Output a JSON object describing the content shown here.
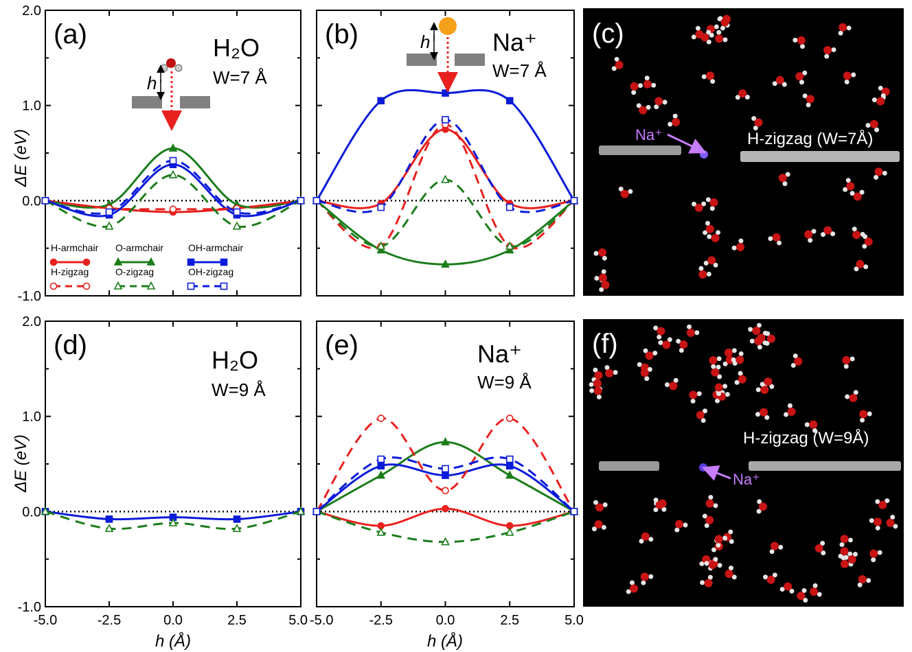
{
  "figure": {
    "y_axis_label": "ΔE (eV)",
    "x_axis_label": "h (Å)",
    "legend": [
      {
        "label": "H-armchair",
        "color": "#e8201e",
        "dash": false,
        "marker": "filled-circle"
      },
      {
        "label": "O-armchair",
        "color": "#1b7d1b",
        "dash": false,
        "marker": "filled-triangle"
      },
      {
        "label": "OH-armchair",
        "color": "#0a1bd9",
        "dash": false,
        "marker": "filled-square"
      },
      {
        "label": "H-zigzag",
        "color": "#e8201e",
        "dash": true,
        "marker": "open-circle"
      },
      {
        "label": "O-zigzag",
        "color": "#1b7d1b",
        "dash": true,
        "marker": "open-triangle"
      },
      {
        "label": "OH-zigzag",
        "color": "#0a1bd9",
        "dash": true,
        "marker": "open-square"
      }
    ],
    "sim_panels": [
      {
        "label": "(c)",
        "text": "H-zigzag (W=7Å)",
        "ion": "Na⁺"
      },
      {
        "label": "(f)",
        "text": "H-zigzag (W=9Å)",
        "ion": "Na⁺"
      }
    ],
    "colors": {
      "red": "#e8201e",
      "green": "#1b7d1b",
      "blue": "#0a1bd9",
      "ion": "#c77dff"
    }
  },
  "chart_data": [
    {
      "type": "line",
      "panel": "(a)",
      "molecule": "H₂O",
      "width_label": "W=7 Å",
      "xlim": [
        -5,
        5
      ],
      "ylim": [
        -1,
        2
      ],
      "xticks": [
        "-5.0",
        "-2.5",
        "0.0",
        "2.5",
        "5.0"
      ],
      "yticks": [
        "-1.0",
        "0.0",
        "1.0",
        "2.0"
      ],
      "xlabel": "",
      "ylabel": "ΔE (eV)",
      "series": [
        {
          "name": "H-armchair",
          "x": [
            -5,
            -2.5,
            0,
            2.5,
            5
          ],
          "y": [
            0,
            -0.08,
            -0.12,
            -0.08,
            0
          ]
        },
        {
          "name": "O-armchair",
          "x": [
            -5,
            -2.5,
            0,
            2.5,
            5
          ],
          "y": [
            0,
            -0.04,
            0.55,
            -0.04,
            0
          ]
        },
        {
          "name": "OH-armchair",
          "x": [
            -5,
            -2.5,
            0,
            2.5,
            5
          ],
          "y": [
            0,
            -0.15,
            0.38,
            -0.15,
            0
          ]
        },
        {
          "name": "H-zigzag",
          "x": [
            -5,
            -2.5,
            0,
            2.5,
            5
          ],
          "y": [
            0,
            -0.08,
            -0.09,
            -0.08,
            0
          ]
        },
        {
          "name": "O-zigzag",
          "x": [
            -5,
            -2.5,
            0,
            2.5,
            5
          ],
          "y": [
            0,
            -0.27,
            0.27,
            -0.27,
            0
          ]
        },
        {
          "name": "OH-zigzag",
          "x": [
            -5,
            -2.5,
            0,
            2.5,
            5
          ],
          "y": [
            0,
            -0.12,
            0.42,
            -0.12,
            0
          ]
        }
      ]
    },
    {
      "type": "line",
      "panel": "(b)",
      "molecule": "Na⁺",
      "width_label": "W=7 Å",
      "xlim": [
        -5,
        5
      ],
      "ylim": [
        -1,
        2
      ],
      "xticks": [
        "-5.0",
        "-2.5",
        "0.0",
        "2.5",
        "5.0"
      ],
      "yticks": [],
      "series": [
        {
          "name": "H-armchair",
          "x": [
            -5,
            -2.5,
            0,
            2.5,
            5
          ],
          "y": [
            0,
            -0.03,
            0.75,
            -0.03,
            0
          ]
        },
        {
          "name": "O-armchair",
          "x": [
            -5,
            -2.5,
            0,
            2.5,
            5
          ],
          "y": [
            0,
            -0.52,
            -0.67,
            -0.52,
            0
          ]
        },
        {
          "name": "OH-armchair",
          "x": [
            -5,
            -2.5,
            0,
            2.5,
            5
          ],
          "y": [
            0,
            1.05,
            1.13,
            1.05,
            0
          ]
        },
        {
          "name": "H-zigzag",
          "x": [
            -5,
            -2.5,
            0,
            2.5,
            5
          ],
          "y": [
            0,
            -0.48,
            0.8,
            -0.48,
            0
          ]
        },
        {
          "name": "O-zigzag",
          "x": [
            -5,
            -2.5,
            0,
            2.5,
            5
          ],
          "y": [
            0,
            -0.48,
            0.22,
            -0.48,
            0
          ]
        },
        {
          "name": "OH-zigzag",
          "x": [
            -5,
            -2.5,
            0,
            2.5,
            5
          ],
          "y": [
            0,
            -0.07,
            0.85,
            -0.07,
            0
          ]
        }
      ]
    },
    {
      "type": "line",
      "panel": "(d)",
      "molecule": "H₂O",
      "width_label": "W=9 Å",
      "xlim": [
        -5,
        5
      ],
      "ylim": [
        -1,
        2
      ],
      "xticks": [
        "-5.0",
        "-2.5",
        "0.0",
        "2.5",
        "5.0"
      ],
      "yticks": [
        "-1.0",
        "0.0",
        "1.0",
        "2.0"
      ],
      "xlabel": "h (Å)",
      "ylabel": "ΔE (eV)",
      "series": [
        {
          "name": "OH-armchair",
          "x": [
            -5,
            -2.5,
            0,
            2.5,
            5
          ],
          "y": [
            0,
            -0.08,
            -0.06,
            -0.08,
            0
          ]
        },
        {
          "name": "O-zigzag",
          "x": [
            -5,
            -2.5,
            0,
            2.5,
            5
          ],
          "y": [
            0,
            -0.18,
            -0.12,
            -0.18,
            0
          ]
        }
      ]
    },
    {
      "type": "line",
      "panel": "(e)",
      "molecule": "Na⁺",
      "width_label": "W=9 Å",
      "xlim": [
        -5,
        5
      ],
      "ylim": [
        -1,
        2
      ],
      "xticks": [
        "-5.0",
        "-2.5",
        "0.0",
        "2.5",
        "5.0"
      ],
      "yticks": [],
      "xlabel": "h (Å)",
      "series": [
        {
          "name": "H-armchair",
          "x": [
            -5,
            -2.5,
            0,
            2.5,
            5
          ],
          "y": [
            0,
            -0.15,
            0.03,
            -0.15,
            0
          ]
        },
        {
          "name": "O-armchair",
          "x": [
            -5,
            -2.5,
            0,
            2.5,
            5
          ],
          "y": [
            0,
            0.38,
            0.73,
            0.38,
            0
          ]
        },
        {
          "name": "OH-armchair",
          "x": [
            -5,
            -2.5,
            0,
            2.5,
            5
          ],
          "y": [
            0,
            0.48,
            0.38,
            0.48,
            0
          ]
        },
        {
          "name": "H-zigzag",
          "x": [
            -5,
            -2.5,
            0,
            2.5,
            5
          ],
          "y": [
            0,
            0.98,
            0.22,
            0.98,
            0
          ]
        },
        {
          "name": "O-zigzag",
          "x": [
            -5,
            -2.5,
            0,
            2.5,
            5
          ],
          "y": [
            0,
            -0.22,
            -0.32,
            -0.22,
            0
          ]
        },
        {
          "name": "OH-zigzag",
          "x": [
            -5,
            -2.5,
            0,
            2.5,
            5
          ],
          "y": [
            0,
            0.55,
            0.45,
            0.55,
            0
          ]
        }
      ]
    }
  ]
}
